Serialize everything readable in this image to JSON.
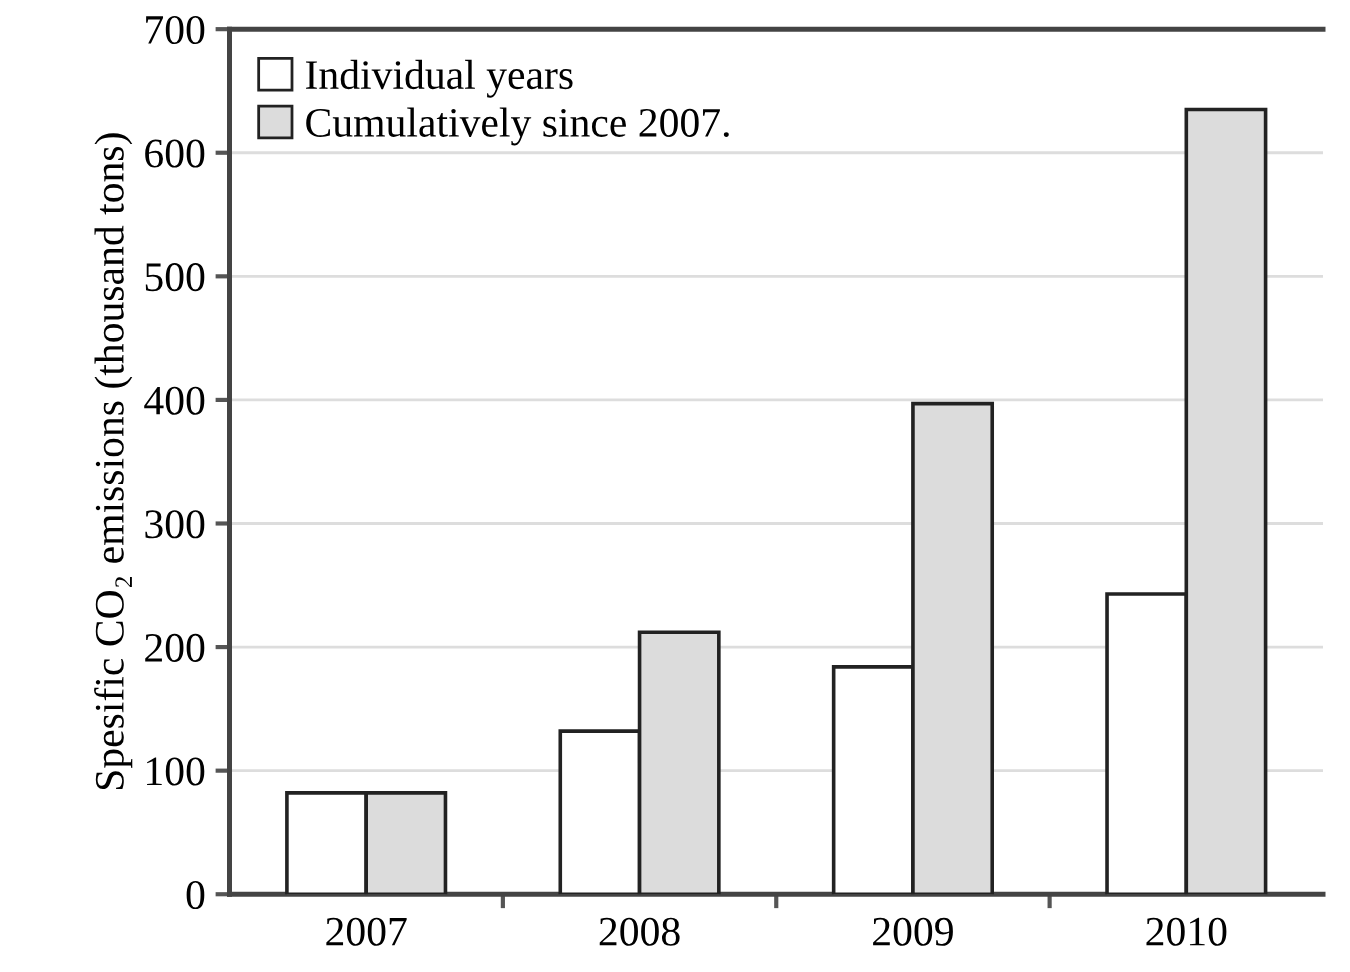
{
  "chart_data": {
    "type": "bar",
    "ylabel": "Spesific CO₂ emissions (thousand tons)",
    "categories": [
      "2007",
      "2008",
      "2009",
      "2010"
    ],
    "series": [
      {
        "name": "Individual years",
        "color": "#ffffff",
        "values": [
          82,
          132,
          184,
          243
        ]
      },
      {
        "name": "Cumulatively since 2007.",
        "color": "#dcdcdc",
        "values": [
          82,
          212,
          397,
          635
        ]
      }
    ],
    "ylim": [
      0,
      700
    ],
    "yticks": [
      0,
      100,
      200,
      300,
      400,
      500,
      600,
      700
    ],
    "grid": "y",
    "legend": "top left"
  }
}
